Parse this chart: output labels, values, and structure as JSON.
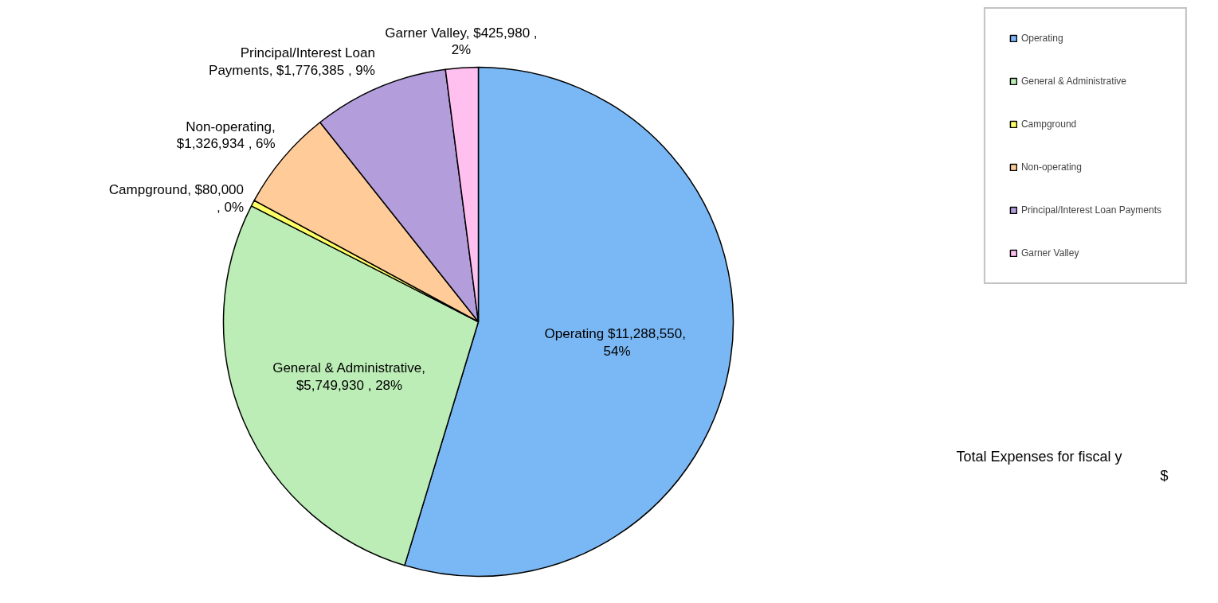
{
  "chart_data": {
    "type": "pie",
    "categories": [
      "Operating",
      "General & Administrative",
      "Campground",
      "Non-operating",
      "Principal/Interest Loan Payments",
      "Garner Valley"
    ],
    "values": [
      11288550,
      5749930,
      80000,
      1326934,
      1776385,
      425980
    ],
    "colors": [
      "#7ab8f5",
      "#bcedb6",
      "#ffff66",
      "#ffcc99",
      "#b39ddb",
      "#ffc0f0"
    ],
    "value_labels": [
      "Operating  $11,288,550,\n54%",
      "General & Administrative,\n$5,749,930 , 28%",
      "Campground, $80,000\n, 0%",
      "Non-operating,\n$1,326,934 , 6%",
      "Principal/Interest Loan\nPayments, $1,776,385 , 9%",
      "Garner Valley, $425,980 ,\n2%"
    ],
    "legend": "right",
    "annotations": [
      "Total Expenses for fiscal y",
      "$"
    ]
  }
}
